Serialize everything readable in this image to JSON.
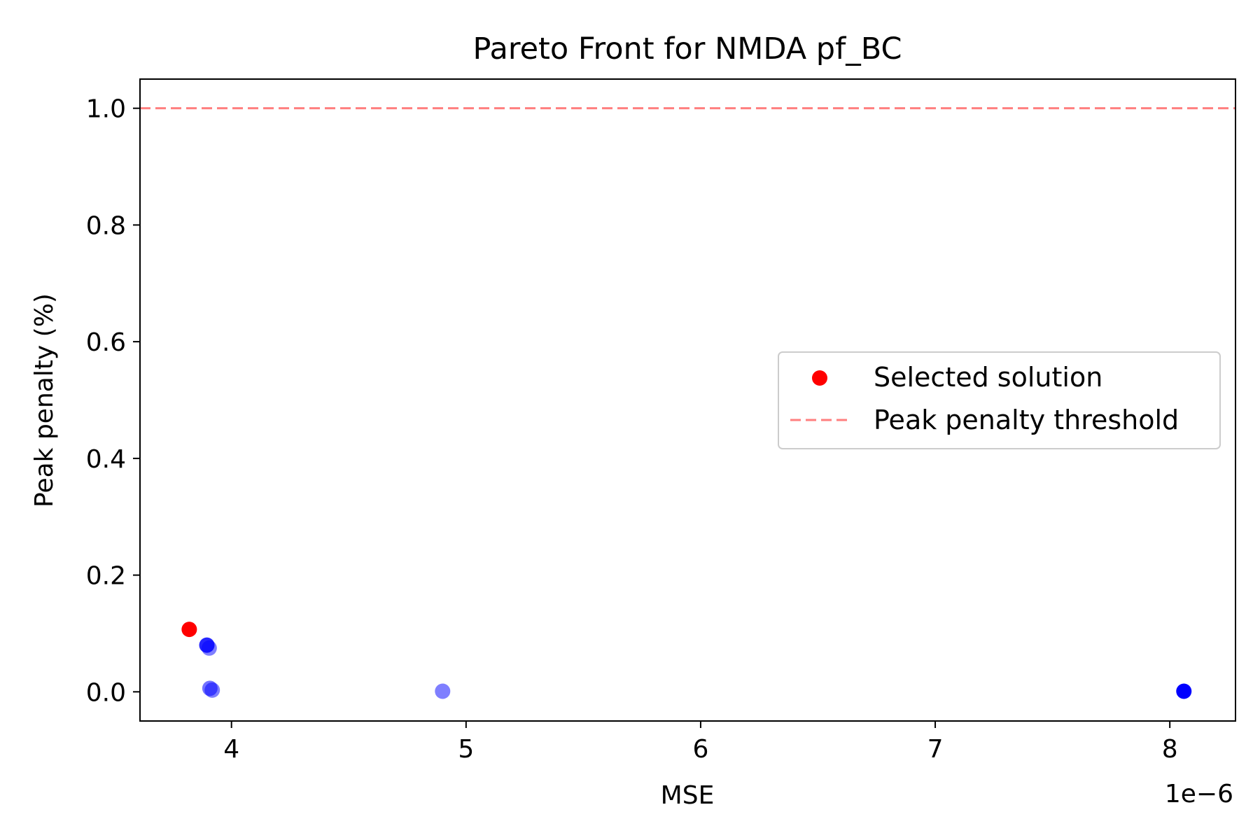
{
  "chart_data": {
    "type": "scatter",
    "title": "Pareto Front for NMDA pf_BC",
    "xlabel": "MSE",
    "ylabel": "Peak penalty (%)",
    "x_offset_text": "1e−6",
    "xlim": [
      3.61,
      8.28
    ],
    "ylim": [
      -0.05,
      1.05
    ],
    "x_ticks": [
      4,
      5,
      6,
      7,
      8
    ],
    "x_tick_labels": [
      "4",
      "5",
      "6",
      "7",
      "8"
    ],
    "y_ticks": [
      0.0,
      0.2,
      0.4,
      0.6,
      0.8,
      1.0
    ],
    "y_tick_labels": [
      "0.0",
      "0.2",
      "0.4",
      "0.6",
      "0.8",
      "1.0"
    ],
    "grid": false,
    "legend_position": "center-right",
    "threshold": {
      "name": "Peak penalty threshold",
      "y": 1.0,
      "color": "#ff7f7f",
      "style": "dashed"
    },
    "selected": {
      "name": "Selected solution",
      "x": 3.82,
      "y": 0.107,
      "color": "#ff0000"
    },
    "pareto_points": {
      "color": "#0000ff",
      "points": [
        {
          "x": 3.895,
          "y": 0.08,
          "opacity": 0.85
        },
        {
          "x": 3.905,
          "y": 0.075,
          "opacity": 0.5
        },
        {
          "x": 3.908,
          "y": 0.006,
          "opacity": 0.55
        },
        {
          "x": 3.918,
          "y": 0.003,
          "opacity": 0.5
        },
        {
          "x": 4.9,
          "y": 0.001,
          "opacity": 0.5
        },
        {
          "x": 8.06,
          "y": 0.001,
          "opacity": 1.0
        }
      ]
    }
  }
}
